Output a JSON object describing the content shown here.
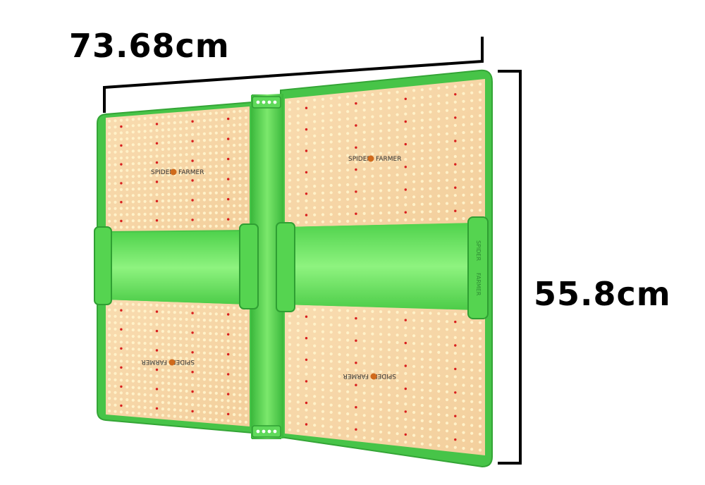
{
  "dimensions": {
    "width": "73.68cm",
    "height": "55.8cm"
  },
  "product": {
    "brand_left": "SPIDER",
    "brand_right": "FARMER",
    "board_count": 4
  },
  "colors": {
    "frame_green": "#48c84a",
    "frame_green_light": "#8cf07e",
    "bar_green": "#62e05c",
    "board": "#f7d6a6",
    "led_warm": "#fff2c9",
    "led_red": "#d81e1e",
    "dimension_line": "#000000"
  }
}
